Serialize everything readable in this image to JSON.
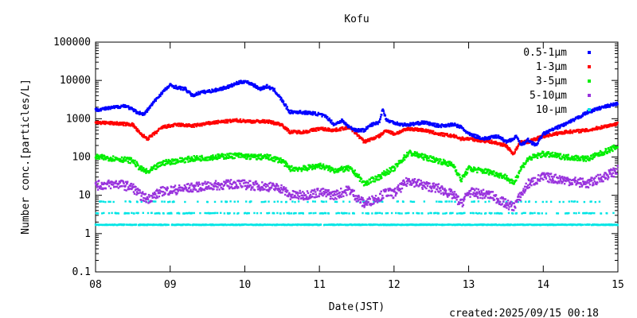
{
  "chart_data": {
    "type": "scatter",
    "title": "Kofu",
    "xlabel": "Date(JST)",
    "ylabel": "Number conc.[particles/L]",
    "created": "created:2025/09/15 00:18",
    "yscale": "log",
    "ylim": [
      0.1,
      100000
    ],
    "yticks": [
      "0.1",
      "1",
      "10",
      "100",
      "1000",
      "10000",
      "100000"
    ],
    "xlim": [
      8,
      15
    ],
    "xticks": [
      "08",
      "09",
      "10",
      "11",
      "12",
      "13",
      "14",
      "15"
    ],
    "legend_position": "top-right",
    "grid": false,
    "series": [
      {
        "name": "0.5-1μm",
        "color": "#0000ff",
        "x": [
          8.0,
          8.2,
          8.4,
          8.55,
          8.65,
          8.8,
          8.9,
          9.0,
          9.1,
          9.2,
          9.3,
          9.4,
          9.6,
          9.8,
          9.9,
          10.0,
          10.1,
          10.2,
          10.3,
          10.4,
          10.5,
          10.6,
          10.7,
          10.9,
          11.0,
          11.1,
          11.2,
          11.3,
          11.4,
          11.5,
          11.6,
          11.7,
          11.8,
          11.85,
          11.9,
          12.0,
          12.1,
          12.2,
          12.4,
          12.6,
          12.8,
          12.9,
          13.0,
          13.2,
          13.4,
          13.5,
          13.6,
          13.65,
          13.7,
          13.8,
          13.9,
          14.0,
          14.2,
          14.4,
          14.6,
          14.8,
          15.0
        ],
        "y": [
          1700,
          1900,
          2200,
          1500,
          1300,
          3000,
          5000,
          7500,
          6500,
          6000,
          4000,
          4800,
          5500,
          7000,
          8500,
          9500,
          8000,
          6000,
          7000,
          5500,
          3000,
          1500,
          1500,
          1400,
          1300,
          1100,
          700,
          900,
          600,
          500,
          500,
          700,
          800,
          1800,
          900,
          800,
          700,
          700,
          800,
          650,
          700,
          600,
          400,
          300,
          350,
          250,
          300,
          350,
          200,
          280,
          200,
          400,
          600,
          900,
          1500,
          2000,
          2500
        ]
      },
      {
        "name": "1-3μm",
        "color": "#ff0000",
        "x": [
          8.0,
          8.3,
          8.5,
          8.6,
          8.7,
          8.9,
          9.1,
          9.3,
          9.6,
          9.9,
          10.1,
          10.3,
          10.5,
          10.6,
          10.8,
          11.0,
          11.2,
          11.4,
          11.5,
          11.6,
          11.8,
          11.9,
          12.0,
          12.2,
          12.4,
          12.6,
          12.8,
          12.9,
          13.0,
          13.3,
          13.5,
          13.6,
          13.7,
          13.8,
          14.0,
          14.3,
          14.6,
          15.0
        ],
        "y": [
          800,
          750,
          700,
          400,
          300,
          600,
          700,
          650,
          800,
          900,
          850,
          850,
          700,
          450,
          450,
          550,
          500,
          600,
          400,
          250,
          350,
          500,
          400,
          550,
          500,
          400,
          350,
          300,
          300,
          250,
          200,
          120,
          250,
          250,
          350,
          450,
          500,
          750
        ]
      },
      {
        "name": "3-5μm",
        "color": "#00ee00",
        "x": [
          8.0,
          8.3,
          8.5,
          8.6,
          8.7,
          8.9,
          9.1,
          9.3,
          9.6,
          9.9,
          10.1,
          10.3,
          10.5,
          10.6,
          10.8,
          11.0,
          11.2,
          11.4,
          11.5,
          11.6,
          11.8,
          11.9,
          12.0,
          12.2,
          12.4,
          12.6,
          12.8,
          12.9,
          13.0,
          13.3,
          13.5,
          13.6,
          13.7,
          13.8,
          14.0,
          14.3,
          14.6,
          15.0
        ],
        "y": [
          100,
          90,
          80,
          50,
          40,
          70,
          80,
          90,
          100,
          110,
          100,
          100,
          80,
          50,
          50,
          60,
          45,
          50,
          35,
          20,
          30,
          40,
          50,
          130,
          100,
          80,
          60,
          25,
          50,
          40,
          30,
          20,
          50,
          90,
          120,
          100,
          90,
          190
        ]
      },
      {
        "name": "5-10μm",
        "color": "#9933dd",
        "x": [
          8.0,
          8.3,
          8.5,
          8.6,
          8.7,
          8.9,
          9.1,
          9.3,
          9.6,
          9.9,
          10.1,
          10.3,
          10.5,
          10.6,
          10.8,
          11.0,
          11.2,
          11.4,
          11.5,
          11.6,
          11.8,
          11.9,
          12.0,
          12.2,
          12.4,
          12.6,
          12.8,
          12.9,
          13.0,
          13.3,
          13.5,
          13.6,
          13.7,
          13.8,
          14.0,
          14.3,
          14.6,
          15.0
        ],
        "y": [
          18,
          20,
          16,
          10,
          8,
          13,
          14,
          16,
          18,
          20,
          18,
          17,
          15,
          10,
          10,
          12,
          10,
          14,
          9,
          6,
          9,
          12,
          11,
          25,
          18,
          15,
          10,
          6,
          12,
          10,
          6,
          5,
          10,
          20,
          30,
          25,
          20,
          45
        ]
      },
      {
        "name": "10-μm",
        "color": "#00e5e5",
        "x": [
          8.0,
          8.5,
          9.0,
          9.5,
          10.0,
          10.5,
          11.0,
          11.5,
          12.0,
          12.5,
          13.0,
          13.5,
          14.0,
          14.5,
          15.0
        ],
        "y": [
          1.7,
          1.7,
          1.7,
          1.7,
          1.7,
          1.7,
          1.7,
          1.7,
          1.7,
          1.7,
          1.7,
          1.7,
          1.7,
          1.7,
          1.7
        ]
      }
    ]
  }
}
